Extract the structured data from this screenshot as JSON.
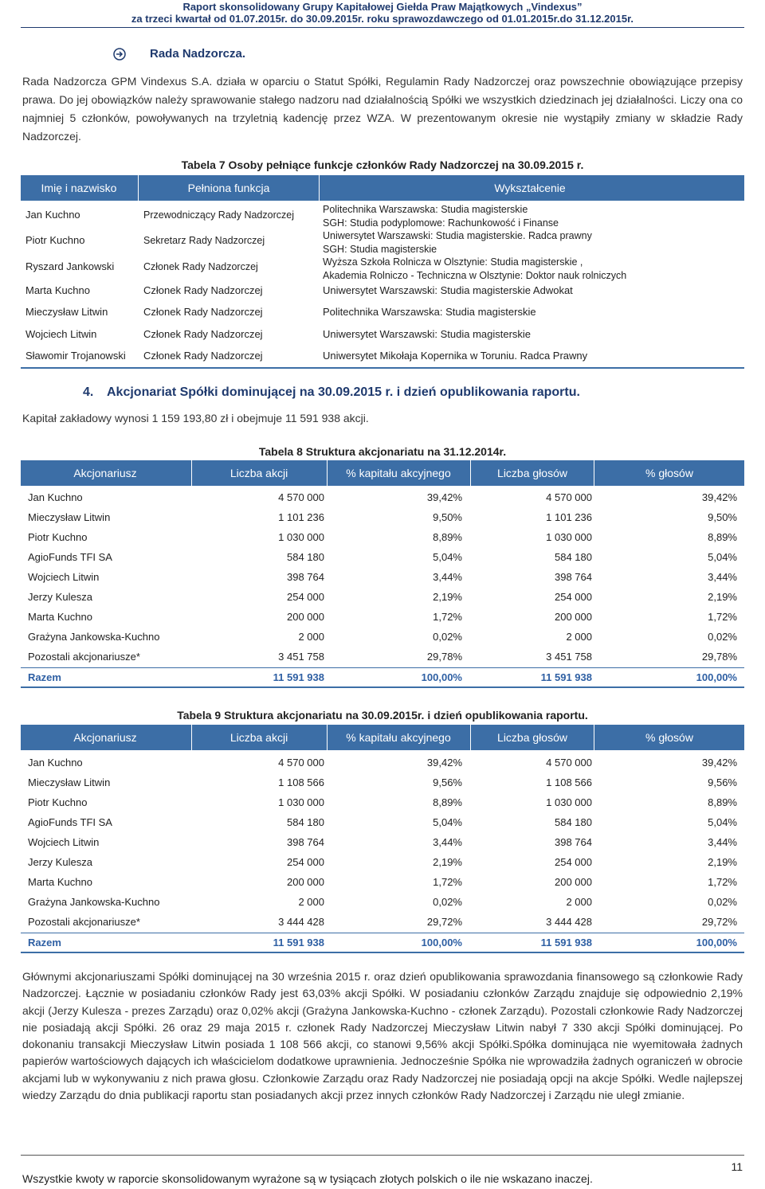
{
  "header": {
    "line1": "Raport skonsolidowany Grupy Kapitałowej Giełda Praw Majątkowych „Vindexus”",
    "line2": "za trzeci kwartał od 01.07.2015r. do 30.09.2015r. roku sprawozdawczego od 01.01.2015r.do 31.12.2015r."
  },
  "board": {
    "title": "Rada Nadzorcza.",
    "paragraph": "Rada Nadzorcza GPM Vindexus S.A. działa w oparciu o Statut Spółki, Regulamin Rady Nadzorczej oraz powszechnie obowiązujące przepisy prawa. Do jej obowiązków należy sprawowanie stałego nadzoru nad działalnością Spółki we wszystkich dziedzinach jej działalności. Liczy ona co najmniej 5 członków, powoływanych na trzyletnią kadencję przez WZA. W prezentowanym okresie nie wystąpiły zmiany w składzie Rady Nadzorczej."
  },
  "table7": {
    "caption": "Tabela 7 Osoby pełniące funkcje członków Rady Nadzorczej na 30.09.2015 r.",
    "columns": [
      "Imię i nazwisko",
      "Pełniona funkcja",
      "Wykształcenie"
    ],
    "rows": [
      [
        "Jan Kuchno",
        "Przewodniczący Rady Nadzorczej",
        [
          "Politechnika Warszawska: Studia magisterskie",
          "SGH: Studia podyplomowe: Rachunkowość i Finanse"
        ]
      ],
      [
        "Piotr Kuchno",
        "Sekretarz Rady Nadzorczej",
        [
          "Uniwersytet Warszawski: Studia magisterskie. Radca prawny",
          "SGH: Studia magisterskie"
        ]
      ],
      [
        "Ryszard Jankowski",
        "Członek Rady Nadzorczej",
        [
          "Wyższa Szkoła Rolnicza w Olsztynie: Studia magisterskie ,",
          "Akademia Rolniczo - Techniczna w Olsztynie: Doktor nauk rolniczych"
        ]
      ],
      [
        "Marta Kuchno",
        "Członek Rady Nadzorczej",
        "Uniwersytet Warszawski: Studia magisterskie Adwokat"
      ],
      [
        "Mieczysław Litwin",
        "Członek Rady Nadzorczej",
        "Politechnika Warszawska: Studia magisterskie"
      ],
      [
        "Wojciech Litwin",
        "Członek Rady Nadzorczej",
        "Uniwersytet Warszawski: Studia magisterskie"
      ],
      [
        "Sławomir Trojanowski",
        "Członek Rady Nadzorczej",
        "Uniwersytet Mikołaja Kopernika w Toruniu. Radca Prawny"
      ]
    ]
  },
  "section4": {
    "number": "4.",
    "title": "Akcjonariat Spółki dominującej na 30.09.2015 r. i dzień opublikowania raportu.",
    "capital": "Kapitał zakładowy wynosi 1 159 193,80 zł i obejmuje 11 591 938 akcji."
  },
  "table8": {
    "caption": "Tabela 8 Struktura akcjonariatu na 31.12.2014r.",
    "columns": [
      "Akcjonariusz",
      "Liczba akcji",
      "% kapitału akcyjnego",
      "Liczba głosów",
      "% głosów"
    ],
    "rows": [
      [
        "Jan Kuchno",
        "4 570 000",
        "39,42%",
        "4 570 000",
        "39,42%"
      ],
      [
        "Mieczysław Litwin",
        "1 101 236",
        "9,50%",
        "1 101 236",
        "9,50%"
      ],
      [
        "Piotr Kuchno",
        "1 030 000",
        "8,89%",
        "1 030 000",
        "8,89%"
      ],
      [
        "AgioFunds TFI SA",
        "584 180",
        "5,04%",
        "584 180",
        "5,04%"
      ],
      [
        "Wojciech Litwin",
        "398 764",
        "3,44%",
        "398 764",
        "3,44%"
      ],
      [
        "Jerzy Kulesza",
        "254 000",
        "2,19%",
        "254 000",
        "2,19%"
      ],
      [
        "Marta Kuchno",
        "200 000",
        "1,72%",
        "200 000",
        "1,72%"
      ],
      [
        "Grażyna Jankowska-Kuchno",
        "2 000",
        "0,02%",
        "2 000",
        "0,02%"
      ],
      [
        "Pozostali akcjonariusze*",
        "3 451 758",
        "29,78%",
        "3 451 758",
        "29,78%"
      ]
    ],
    "total": [
      "Razem",
      "11 591 938",
      "100,00%",
      "11 591 938",
      "100,00%"
    ]
  },
  "table9": {
    "caption": "Tabela 9 Struktura akcjonariatu na 30.09.2015r. i dzień opublikowania raportu.",
    "columns": [
      "Akcjonariusz",
      "Liczba akcji",
      "% kapitału akcyjnego",
      "Liczba głosów",
      "% głosów"
    ],
    "rows": [
      [
        "Jan Kuchno",
        "4 570 000",
        "39,42%",
        "4 570 000",
        "39,42%"
      ],
      [
        "Mieczysław Litwin",
        "1 108 566",
        "9,56%",
        "1 108 566",
        "9,56%"
      ],
      [
        "Piotr Kuchno",
        "1 030 000",
        "8,89%",
        "1 030 000",
        "8,89%"
      ],
      [
        "AgioFunds TFI SA",
        "584 180",
        "5,04%",
        "584 180",
        "5,04%"
      ],
      [
        "Wojciech Litwin",
        "398 764",
        "3,44%",
        "398 764",
        "3,44%"
      ],
      [
        "Jerzy Kulesza",
        "254 000",
        "2,19%",
        "254 000",
        "2,19%"
      ],
      [
        "Marta Kuchno",
        "200 000",
        "1,72%",
        "200 000",
        "1,72%"
      ],
      [
        "Grażyna Jankowska-Kuchno",
        "2 000",
        "0,02%",
        "2 000",
        "0,02%"
      ],
      [
        "Pozostali akcjonariusze*",
        "3 444 428",
        "29,72%",
        "3 444 428",
        "29,72%"
      ]
    ],
    "total": [
      "Razem",
      "11 591 938",
      "100,00%",
      "11 591 938",
      "100,00%"
    ]
  },
  "summary": "Głównymi akcjonariuszami Spółki dominującej na 30 września 2015 r. oraz dzień opublikowania sprawozdania finansowego są członkowie Rady Nadzorczej. Łącznie w posiadaniu członków Rady jest 63,03% akcji Spółki. W posiadaniu członków Zarządu znajduje się odpowiednio 2,19% akcji (Jerzy Kulesza - prezes Zarządu) oraz 0,02% akcji (Grażyna Jankowska-Kuchno - członek Zarządu). Pozostali członkowie Rady Nadzorczej nie posiadają akcji Spółki. 26 oraz 29 maja 2015 r. członek Rady Nadzorczej Mieczysław Litwin nabył 7 330 akcji Spółki dominującej. Po dokonaniu transakcji Mieczysław Litwin posiada 1 108 566 akcji, co stanowi 9,56% akcji Spółki.Spółka dominująca nie wyemitowała żadnych papierów wartościowych dających ich właścicielom dodatkowe uprawnienia. Jednocześnie Spółka nie wprowadziła żadnych ograniczeń w obrocie akcjami lub w wykonywaniu z nich prawa głosu. Członkowie Zarządu oraz Rady Nadzorczej nie posiadają opcji na akcje Spółki. Wedle najlepszej wiedzy Zarządu do dnia publikacji raportu stan posiadanych akcji przez innych członków Rady Nadzorczej i Zarządu nie uległ zmianie.",
  "footer": {
    "page": "11",
    "note": "Wszystkie kwoty w raporcie skonsolidowanym wyrażone są w tysiącach złotych polskich o ile nie wskazano inaczej."
  }
}
